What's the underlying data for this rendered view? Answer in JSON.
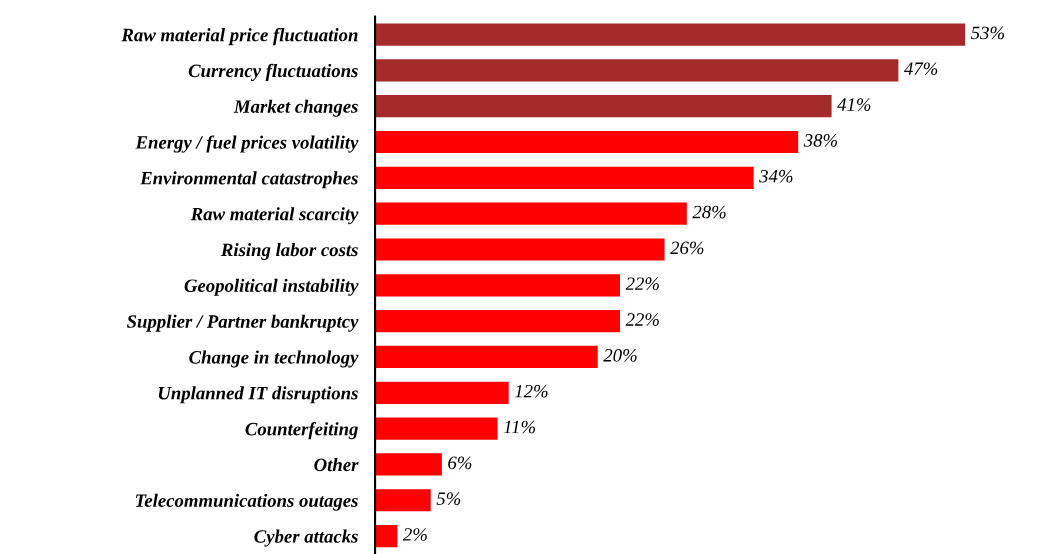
{
  "chart_data": {
    "type": "bar",
    "orientation": "horizontal",
    "categories": [
      "Raw material price fluctuation",
      "Currency fluctuations",
      "Market changes",
      "Energy / fuel prices volatility",
      "Environmental catastrophes",
      "Raw material scarcity",
      "Rising labor costs",
      "Geopolitical instability",
      "Supplier / Partner bankruptcy",
      "Change in technology",
      "Unplanned IT disruptions",
      "Counterfeiting",
      "Other",
      "Telecommunications outages",
      "Cyber attacks"
    ],
    "values": [
      53,
      47,
      41,
      38,
      34,
      28,
      26,
      22,
      22,
      20,
      12,
      11,
      6,
      5,
      2
    ],
    "value_labels": [
      "53%",
      "47%",
      "41%",
      "38%",
      "34%",
      "28%",
      "26%",
      "22%",
      "22%",
      "20%",
      "12%",
      "11%",
      "6%",
      "5%",
      "2%"
    ],
    "colors": [
      "#a52a2a",
      "#a52a2a",
      "#a52a2a",
      "#ff0000",
      "#ff0000",
      "#ff0000",
      "#ff0000",
      "#ff0000",
      "#ff0000",
      "#ff0000",
      "#ff0000",
      "#ff0000",
      "#ff0000",
      "#ff0000",
      "#ff0000"
    ],
    "grid": false,
    "legend": false
  }
}
